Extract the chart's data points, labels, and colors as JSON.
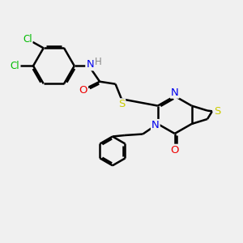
{
  "bg_color": "#f0f0f0",
  "atom_colors": {
    "C": "#000000",
    "N": "#0000ee",
    "O": "#ee0000",
    "S": "#cccc00",
    "Cl": "#00bb00",
    "H": "#888888"
  },
  "bond_color": "#000000",
  "bond_width": 1.8
}
